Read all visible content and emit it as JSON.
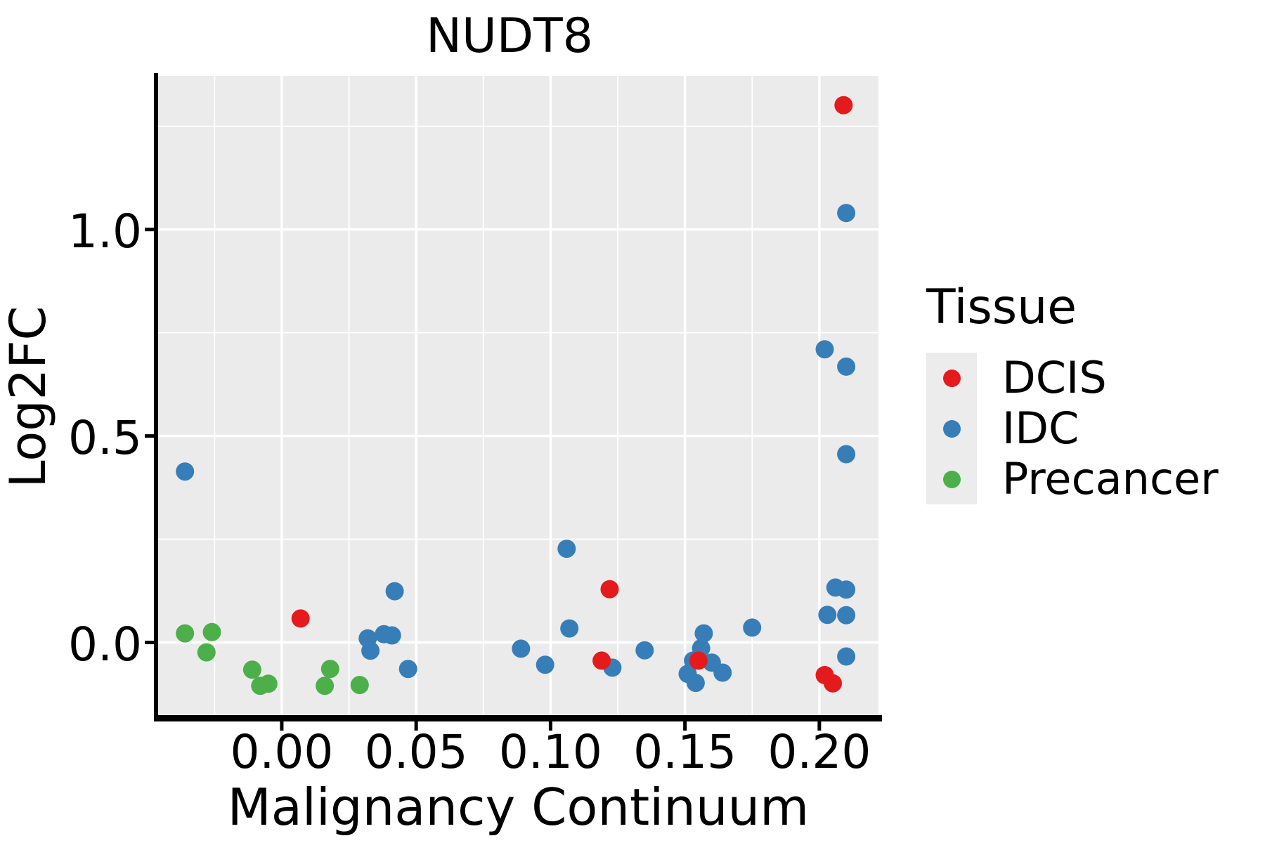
{
  "title": "NUDT8",
  "colors": {
    "panel_bg": "#EBEBEB",
    "grid": "#FFFFFF",
    "axis": "#000000",
    "text": "#000000",
    "legend_key_bg": "#ECECEC",
    "dcis_red": "#E41A1C",
    "idc_blue": "#377EB8",
    "precancer_green": "#4DAF4A"
  },
  "legend": {
    "title": "Tissue",
    "items": [
      {
        "label": "DCIS",
        "color": "#E41A1C"
      },
      {
        "label": "IDC",
        "color": "#377EB8"
      },
      {
        "label": "Precancer",
        "color": "#4DAF4A"
      }
    ]
  },
  "chart_data": {
    "type": "scatter",
    "title": "NUDT8",
    "xlabel": "Malignancy Continuum",
    "ylabel": "Log2FC",
    "xlim": [
      -0.046,
      0.222
    ],
    "ylim": [
      -0.176,
      1.372
    ],
    "x_ticks": [
      0.0,
      0.05,
      0.1,
      0.15,
      0.2
    ],
    "x_tick_labels": [
      "0.00",
      "0.05",
      "0.10",
      "0.15",
      "0.20"
    ],
    "x_minor_ticks": [
      -0.025,
      0.025,
      0.075,
      0.125,
      0.175
    ],
    "y_ticks": [
      0.0,
      0.5,
      1.0
    ],
    "y_tick_labels": [
      "0.0",
      "0.5",
      "1.0"
    ],
    "y_minor_ticks": [
      0.25,
      0.75,
      1.25
    ],
    "grid": true,
    "legend_position": "right",
    "legend_title": "Tissue",
    "point_radius_px": 13,
    "series": [
      {
        "name": "DCIS",
        "color": "#E41A1C",
        "points": [
          [
            0.007,
            0.058
          ],
          [
            0.119,
            -0.044
          ],
          [
            0.122,
            0.129
          ],
          [
            0.155,
            -0.044
          ],
          [
            0.202,
            -0.079
          ],
          [
            0.205,
            -0.099
          ],
          [
            0.209,
            1.301
          ]
        ]
      },
      {
        "name": "IDC",
        "color": "#377EB8",
        "points": [
          [
            -0.036,
            0.414
          ],
          [
            0.032,
            0.01
          ],
          [
            0.033,
            -0.02
          ],
          [
            0.038,
            0.02
          ],
          [
            0.041,
            0.017
          ],
          [
            0.042,
            0.124
          ],
          [
            0.047,
            -0.064
          ],
          [
            0.089,
            -0.015
          ],
          [
            0.098,
            -0.054
          ],
          [
            0.106,
            0.227
          ],
          [
            0.107,
            0.034
          ],
          [
            0.123,
            -0.061
          ],
          [
            0.135,
            -0.019
          ],
          [
            0.151,
            -0.076
          ],
          [
            0.153,
            -0.044
          ],
          [
            0.154,
            -0.098
          ],
          [
            0.156,
            -0.014
          ],
          [
            0.157,
            0.022
          ],
          [
            0.16,
            -0.049
          ],
          [
            0.164,
            -0.073
          ],
          [
            0.175,
            0.036
          ],
          [
            0.202,
            0.71
          ],
          [
            0.203,
            0.067
          ],
          [
            0.206,
            0.133
          ],
          [
            0.21,
            1.04
          ],
          [
            0.21,
            0.668
          ],
          [
            0.21,
            0.456
          ],
          [
            0.21,
            0.128
          ],
          [
            0.21,
            0.066
          ],
          [
            0.21,
            -0.034
          ]
        ]
      },
      {
        "name": "Precancer",
        "color": "#4DAF4A",
        "points": [
          [
            -0.036,
            0.022
          ],
          [
            -0.026,
            0.025
          ],
          [
            -0.028,
            -0.024
          ],
          [
            -0.011,
            -0.066
          ],
          [
            -0.008,
            -0.105
          ],
          [
            -0.005,
            -0.1
          ],
          [
            0.016,
            -0.105
          ],
          [
            0.018,
            -0.064
          ],
          [
            0.029,
            -0.103
          ]
        ]
      }
    ]
  }
}
